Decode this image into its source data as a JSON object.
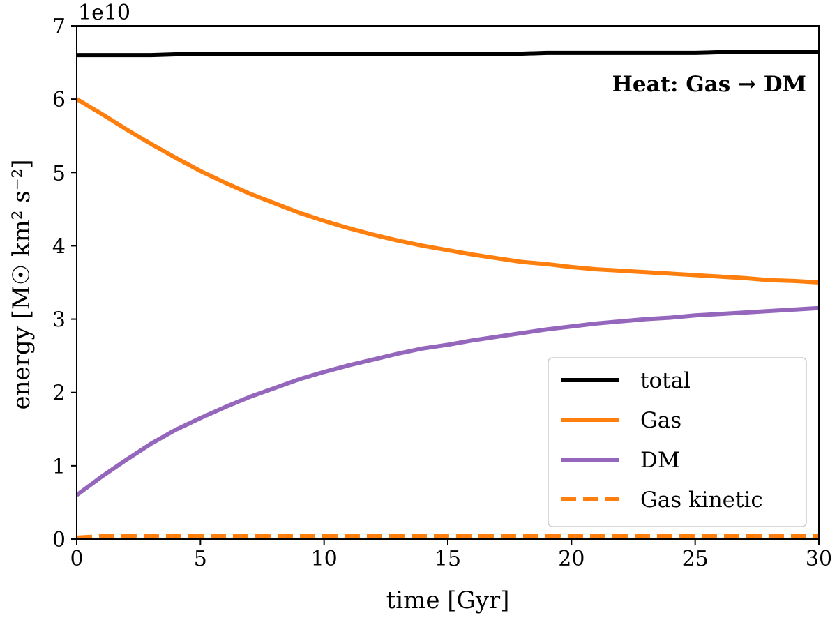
{
  "chart_data": {
    "type": "line",
    "title": "",
    "xlabel": "time [Gyr]",
    "ylabel": "energy [M☉ km² s⁻²]",
    "y_offset_label": "1e10",
    "annotation": "Heat: Gas → DM",
    "xlim": [
      0,
      30
    ],
    "ylim": [
      0,
      7
    ],
    "x_ticks": [
      0,
      5,
      10,
      15,
      20,
      25,
      30
    ],
    "y_ticks": [
      0,
      1,
      2,
      3,
      4,
      5,
      6,
      7
    ],
    "grid": false,
    "legend_position": "lower-right",
    "x": [
      0,
      1,
      2,
      3,
      4,
      5,
      6,
      7,
      8,
      9,
      10,
      11,
      12,
      13,
      14,
      15,
      16,
      17,
      18,
      19,
      20,
      21,
      22,
      23,
      24,
      25,
      26,
      27,
      28,
      29,
      30
    ],
    "series": [
      {
        "name": "total",
        "color": "#000000",
        "style": "solid",
        "values": [
          6.6,
          6.6,
          6.6,
          6.6,
          6.61,
          6.61,
          6.61,
          6.61,
          6.61,
          6.61,
          6.61,
          6.62,
          6.62,
          6.62,
          6.62,
          6.62,
          6.62,
          6.62,
          6.62,
          6.63,
          6.63,
          6.63,
          6.63,
          6.63,
          6.63,
          6.63,
          6.64,
          6.64,
          6.64,
          6.64,
          6.64
        ]
      },
      {
        "name": "Gas",
        "color": "#ff7f0e",
        "style": "solid",
        "values": [
          6.0,
          5.8,
          5.59,
          5.39,
          5.2,
          5.02,
          4.86,
          4.71,
          4.58,
          4.45,
          4.34,
          4.24,
          4.15,
          4.07,
          4.0,
          3.94,
          3.88,
          3.83,
          3.78,
          3.75,
          3.71,
          3.68,
          3.66,
          3.64,
          3.62,
          3.6,
          3.58,
          3.56,
          3.53,
          3.52,
          3.5
        ]
      },
      {
        "name": "DM",
        "color": "#9467bd",
        "style": "solid",
        "values": [
          0.6,
          0.85,
          1.08,
          1.3,
          1.49,
          1.65,
          1.8,
          1.94,
          2.06,
          2.18,
          2.28,
          2.37,
          2.45,
          2.53,
          2.6,
          2.65,
          2.71,
          2.76,
          2.81,
          2.86,
          2.9,
          2.94,
          2.97,
          3.0,
          3.02,
          3.05,
          3.07,
          3.09,
          3.11,
          3.13,
          3.15
        ]
      },
      {
        "name": "Gas kinetic",
        "color": "#ff7f0e",
        "style": "dashed",
        "values": [
          0.02,
          0.04,
          0.04,
          0.04,
          0.04,
          0.04,
          0.04,
          0.04,
          0.04,
          0.04,
          0.04,
          0.04,
          0.04,
          0.04,
          0.04,
          0.04,
          0.04,
          0.04,
          0.04,
          0.04,
          0.04,
          0.04,
          0.04,
          0.04,
          0.04,
          0.04,
          0.04,
          0.04,
          0.04,
          0.04,
          0.04
        ]
      }
    ]
  }
}
